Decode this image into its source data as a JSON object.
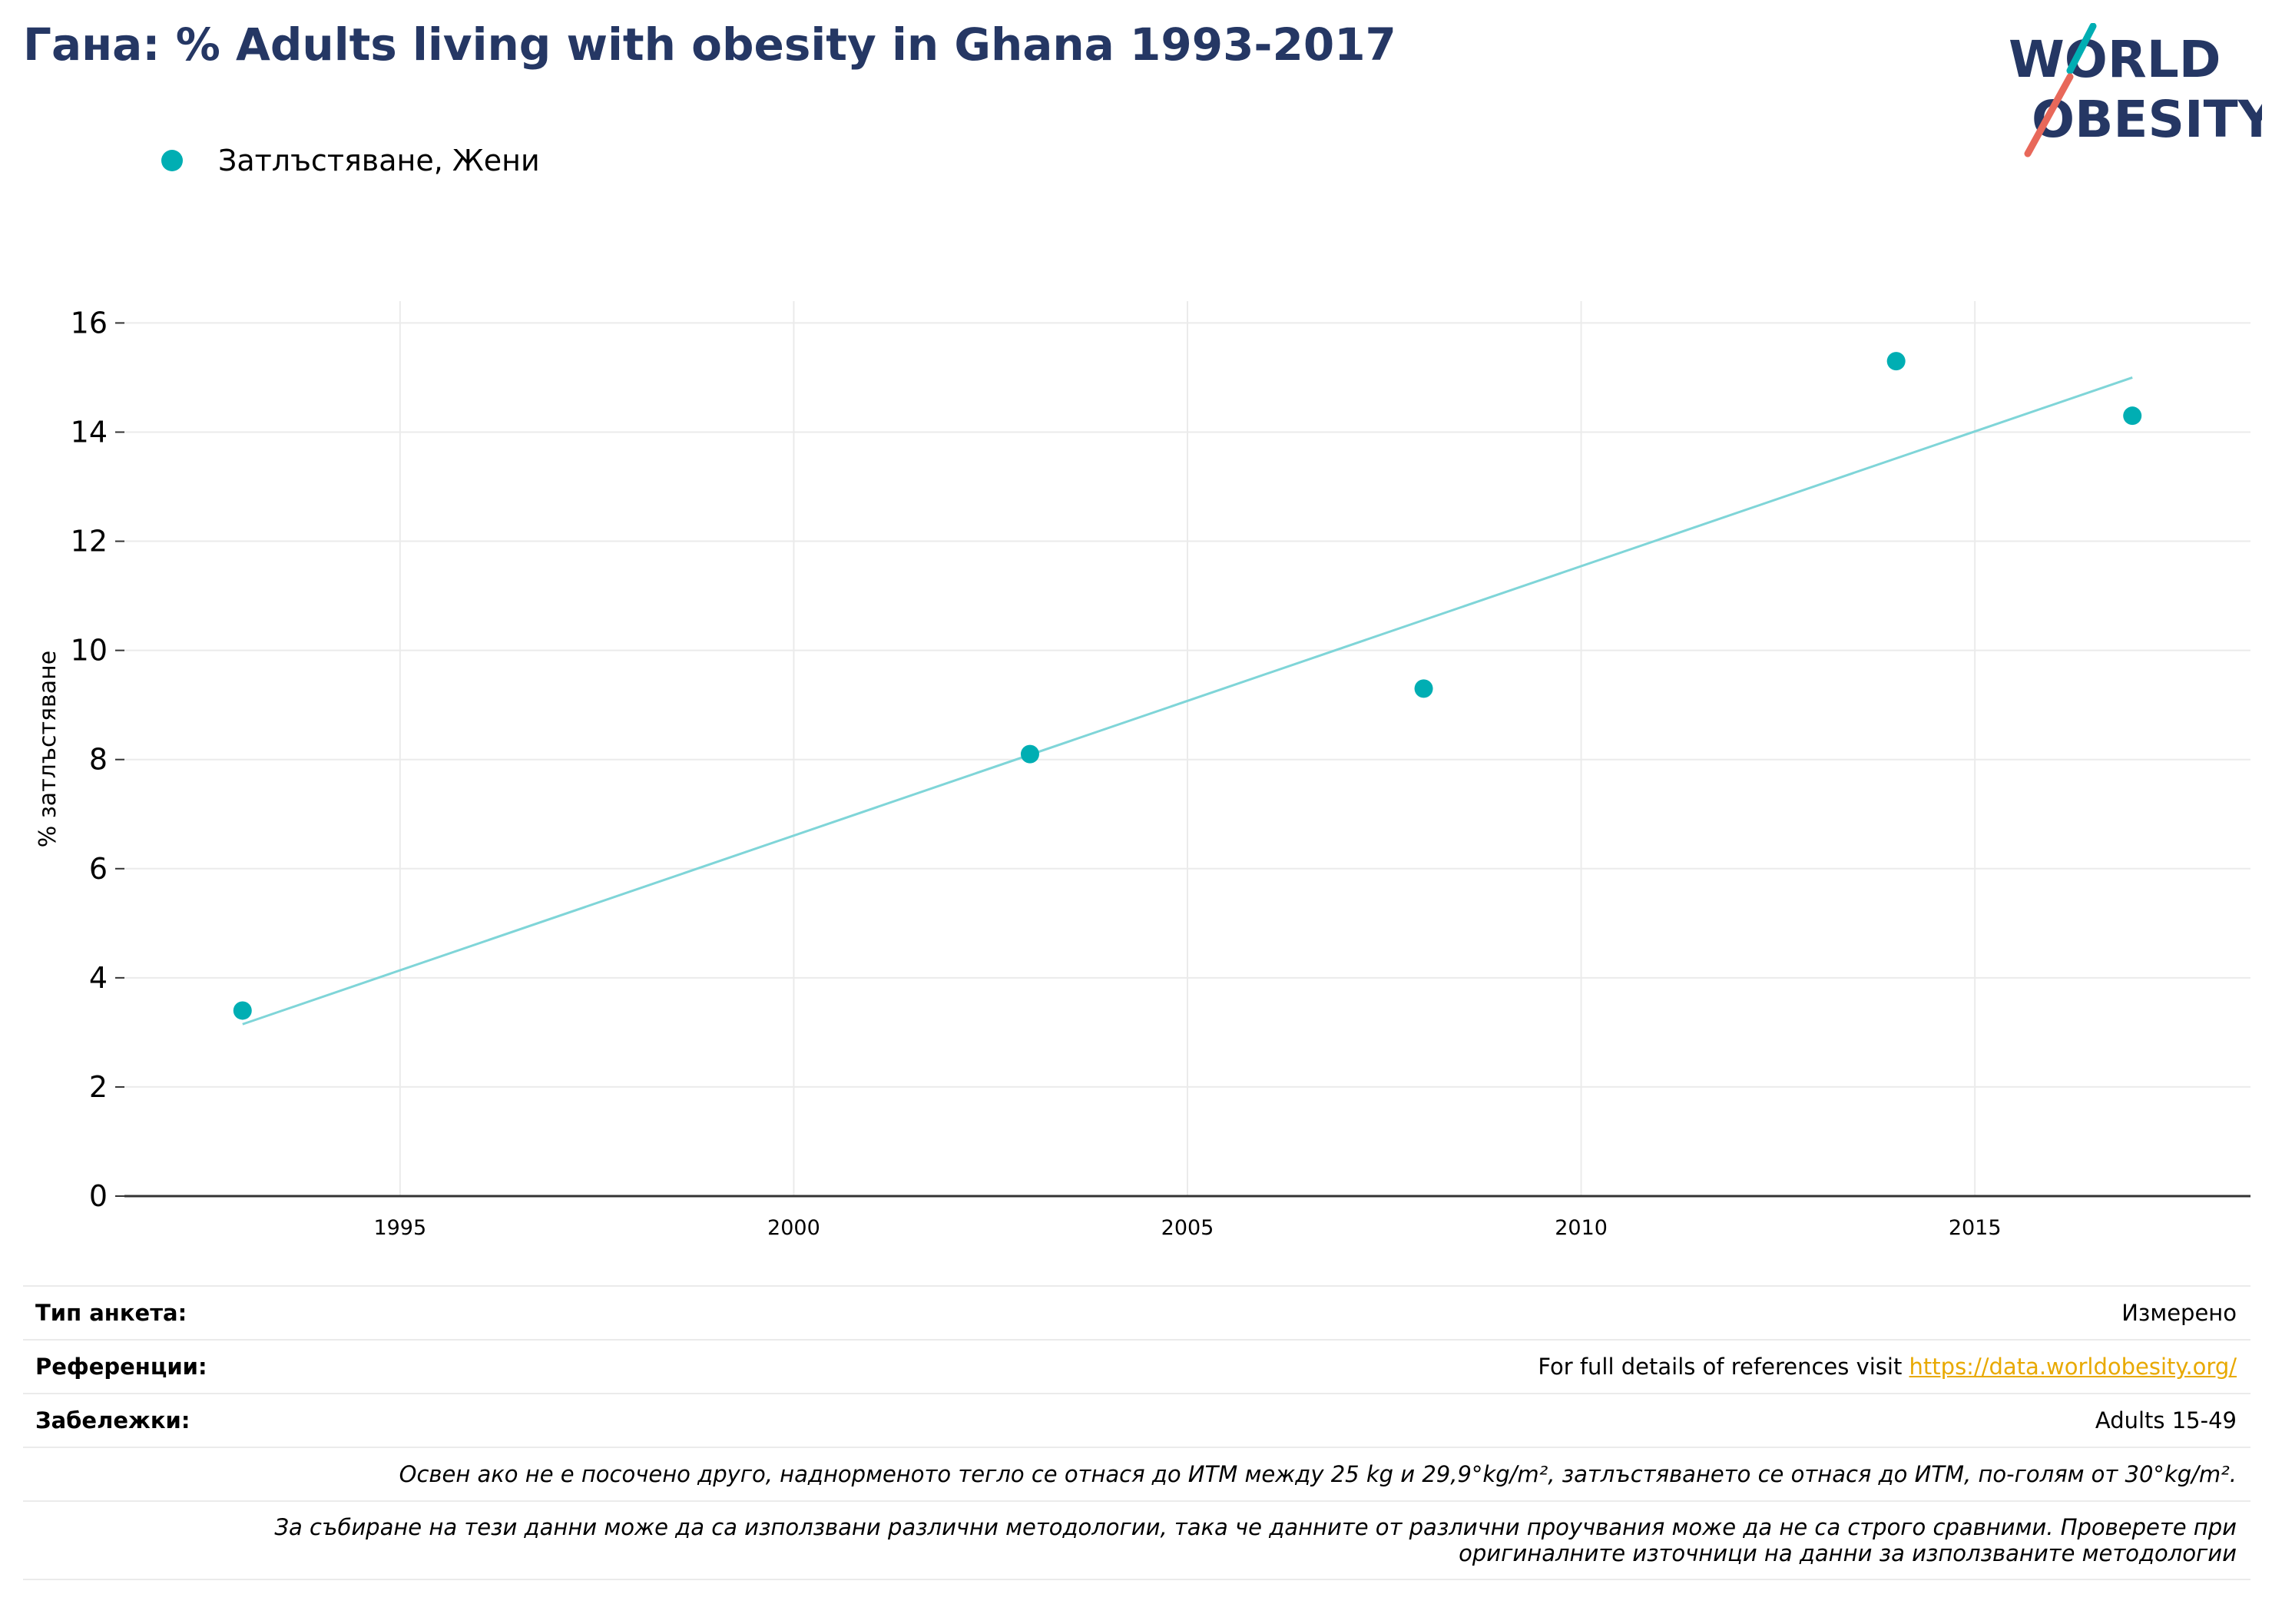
{
  "title": "Гана: % Adults living with obesity in Ghana 1993-2017",
  "logo": {
    "line1": "WORLD",
    "line2": "OBESITY",
    "colors": {
      "text": "#253764",
      "slash_teal": "#00aeb3",
      "slash_red": "#e8685a"
    }
  },
  "chart_data": {
    "type": "scatter",
    "ylabel": "% затлъстяване",
    "xlabel": "",
    "xlim": [
      1991.5,
      2018.5
    ],
    "ylim": [
      0,
      16.4
    ],
    "x_ticks": [
      1995,
      2000,
      2005,
      2010,
      2015
    ],
    "y_ticks": [
      0,
      2,
      4,
      6,
      8,
      10,
      12,
      14,
      16
    ],
    "grid": true,
    "legend_position": "top-left",
    "series": [
      {
        "name": "Затлъстяване, Жени",
        "color": "#00aeb3",
        "x": [
          1993,
          2003,
          2008,
          2014,
          2017
        ],
        "y": [
          3.4,
          8.1,
          9.3,
          15.3,
          14.3
        ]
      }
    ],
    "trendline": {
      "color": "#7fd5d8",
      "x": [
        1993,
        2017
      ],
      "y": [
        3.15,
        15.0
      ]
    }
  },
  "info": {
    "survey_label": "Тип анкета:",
    "survey_value": "Измерено",
    "refs_label": "Референции:",
    "refs_text": "For full details of references visit ",
    "refs_link": "https://data.worldobesity.org/",
    "notes_label": "Забележки:",
    "notes_value": "Adults 15-49",
    "note1": "Освен ако не е посочено друго, наднорменото тегло се отнася до ИТМ между 25 kg и 29,9°kg/m², затлъстяването се отнася до ИТМ, по-голям от 30°kg/m².",
    "note2_line1": "За събиране на тези данни може да са използвани различни методологии, така че данните от различни проучвания може да не са строго сравними. Проверете при",
    "note2_line2": "оригиналните източници на данни за използваните методологии"
  }
}
